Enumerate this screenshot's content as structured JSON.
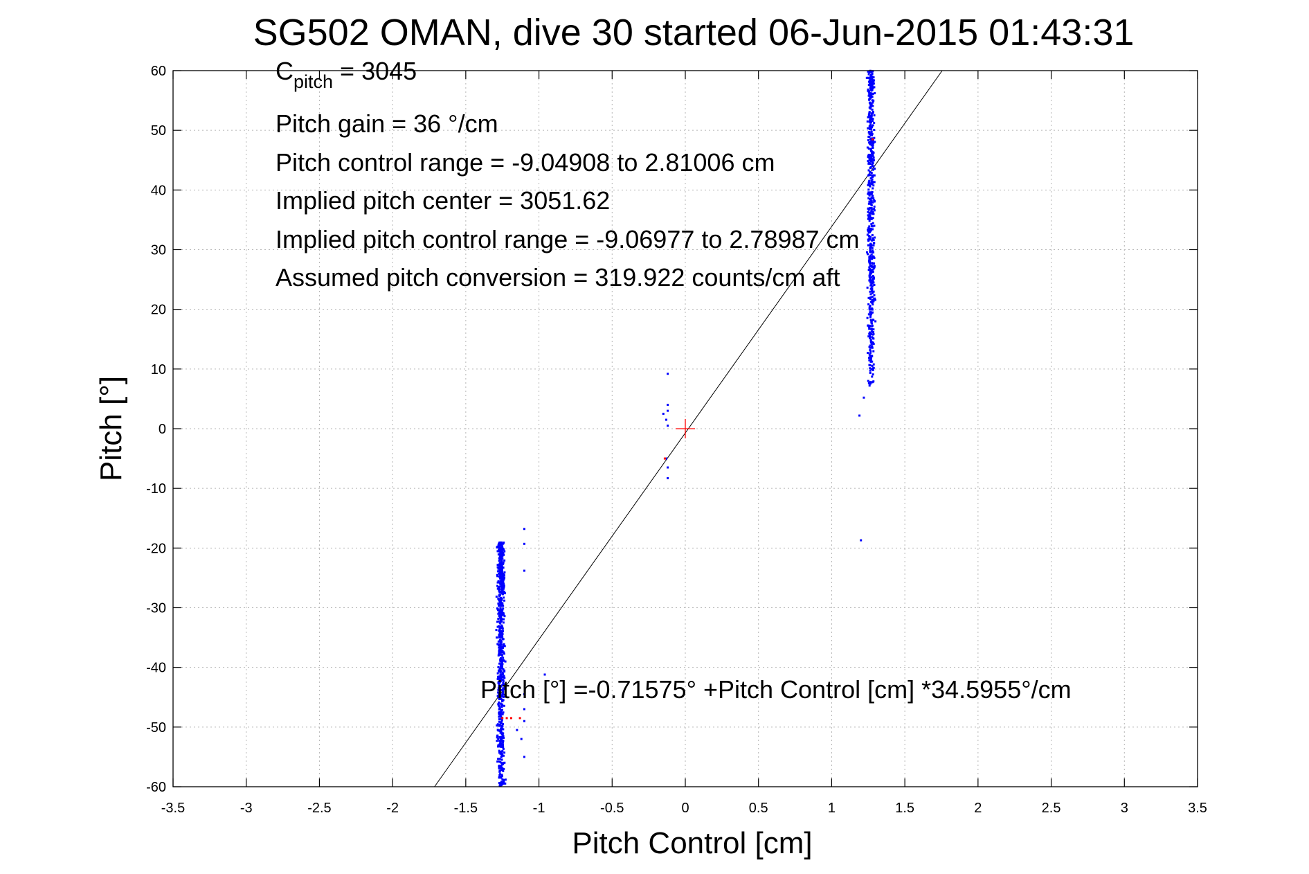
{
  "chart_data": {
    "type": "scatter",
    "title": "SG502 OMAN, dive 30 started 06-Jun-2015 01:43:31",
    "xlabel": "Pitch Control [cm]",
    "ylabel": "Pitch [°]",
    "xlim": [
      -3.5,
      3.5
    ],
    "ylim": [
      -60,
      60
    ],
    "x_ticks": [
      -3.5,
      -3,
      -2.5,
      -2,
      -1.5,
      -1,
      -0.5,
      0,
      0.5,
      1,
      1.5,
      2,
      2.5,
      3,
      3.5
    ],
    "x_tick_labels": [
      "-3.5",
      "-3",
      "-2.5",
      "-2",
      "-1.5",
      "-1",
      "-0.5",
      "0",
      "0.5",
      "1",
      "1.5",
      "2",
      "2.5",
      "3",
      "3.5"
    ],
    "y_ticks": [
      -60,
      -50,
      -40,
      -30,
      -20,
      -10,
      0,
      10,
      20,
      30,
      40,
      50,
      60
    ],
    "y_tick_labels": [
      "-60",
      "-50",
      "-40",
      "-30",
      "-20",
      "-10",
      "0",
      "10",
      "20",
      "30",
      "40",
      "50",
      "60"
    ],
    "grid": true,
    "annotations": {
      "c_pitch_main": "C",
      "c_pitch_sub": "pitch",
      "c_pitch_value": " = 3045",
      "pitch_gain": "Pitch gain = 36 °/cm",
      "pitch_control_range": "Pitch control range = -9.04908 to 2.81006 cm",
      "implied_pitch_center": "Implied pitch center = 3051.62",
      "implied_pitch_control_range": "Implied pitch control range = -9.06977 to 2.78987 cm",
      "assumed_pitch_conversion": "Assumed pitch conversion = 319.922 counts/cm aft",
      "fit_equation": "Pitch [°] =-0.71575° +Pitch Control [cm] *34.5955°/cm"
    },
    "fit_line": {
      "intercept": -0.71575,
      "slope": 34.5955
    },
    "center_marker": {
      "x": 0,
      "y": 0
    },
    "series": [
      {
        "color": "#0000ff",
        "marker": "dot",
        "clusters": [
          {
            "x_center": -1.26,
            "x_spread": 0.035,
            "y_min": -60,
            "y_max": -19,
            "count": 700
          },
          {
            "x_center": 1.27,
            "x_spread": 0.035,
            "y_min": 7,
            "y_max": 60,
            "count": 600
          }
        ],
        "points": [
          {
            "x": -0.12,
            "y": 9.2
          },
          {
            "x": -0.15,
            "y": 2.5
          },
          {
            "x": -0.12,
            "y": 4.0
          },
          {
            "x": -0.12,
            "y": 3.0
          },
          {
            "x": -0.13,
            "y": 1.5
          },
          {
            "x": -0.12,
            "y": 0.5
          },
          {
            "x": -0.13,
            "y": -5.0
          },
          {
            "x": -0.12,
            "y": -6.5
          },
          {
            "x": -0.12,
            "y": -8.3
          },
          {
            "x": -1.1,
            "y": -16.8
          },
          {
            "x": -1.1,
            "y": -19.3
          },
          {
            "x": -1.1,
            "y": -23.8
          },
          {
            "x": -0.96,
            "y": -41.2
          },
          {
            "x": -1.1,
            "y": -44.5
          },
          {
            "x": -1.1,
            "y": -47.0
          },
          {
            "x": -1.1,
            "y": -49.0
          },
          {
            "x": -1.12,
            "y": -52.0
          },
          {
            "x": -1.1,
            "y": -55.0
          },
          {
            "x": -1.15,
            "y": -50.5
          },
          {
            "x": 1.2,
            "y": -18.7
          },
          {
            "x": 1.19,
            "y": 2.2
          },
          {
            "x": 1.22,
            "y": 5.2
          },
          {
            "x": 1.25,
            "y": 8.0
          }
        ]
      },
      {
        "color": "#ff0000",
        "marker": "dot",
        "points": [
          {
            "x": -1.25,
            "y": -48.5
          },
          {
            "x": -1.22,
            "y": -48.5
          },
          {
            "x": -1.19,
            "y": -48.5
          },
          {
            "x": -1.13,
            "y": -48.5
          },
          {
            "x": -0.14,
            "y": -5.0
          },
          {
            "x": 1.28,
            "y": 48.5
          }
        ]
      }
    ]
  }
}
